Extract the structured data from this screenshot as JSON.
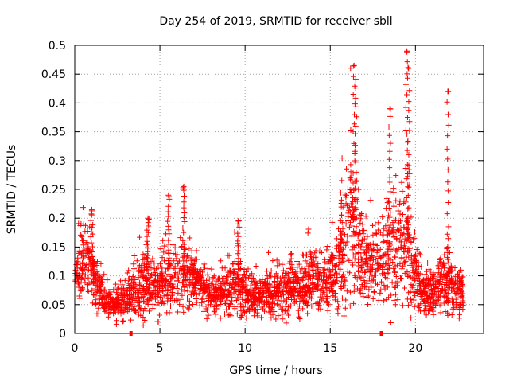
{
  "chart_data": {
    "type": "scatter",
    "title": "Day 254 of 2019, SRMTID for receiver sbll",
    "xlabel": "GPS time / hours",
    "ylabel": "SRMTID / TECUs",
    "xlim": [
      0,
      24
    ],
    "ylim": [
      0,
      0.5
    ],
    "x_ticks": [
      0,
      5,
      10,
      15,
      20
    ],
    "x_tick_labels": [
      "0",
      "5",
      "10",
      "15",
      "20"
    ],
    "y_ticks": [
      0,
      0.05,
      0.1,
      0.15,
      0.2,
      0.25,
      0.3,
      0.35,
      0.4,
      0.45,
      0.5
    ],
    "y_tick_labels": [
      "0",
      "0.05",
      "0.1",
      "0.15",
      "0.2",
      "0.25",
      "0.3",
      "0.35",
      "0.4",
      "0.45",
      "0.5"
    ],
    "grid": true,
    "marker": "plus",
    "color": "#ff0000",
    "gap_markers_x": [
      3.3,
      18.0
    ],
    "envelope": {
      "x": [
        0.0,
        0.3,
        0.6,
        0.9,
        1.2,
        1.5,
        1.8,
        2.1,
        2.4,
        2.7,
        3.0,
        3.3,
        3.6,
        3.9,
        4.2,
        4.5,
        4.8,
        5.1,
        5.4,
        5.7,
        6.0,
        6.3,
        6.6,
        6.9,
        7.2,
        7.5,
        7.8,
        8.1,
        8.4,
        8.7,
        9.0,
        9.3,
        9.6,
        9.9,
        10.2,
        10.5,
        10.8,
        11.1,
        11.4,
        11.7,
        12.0,
        12.3,
        12.6,
        12.9,
        13.2,
        13.5,
        13.8,
        14.1,
        14.4,
        14.7,
        15.0,
        15.3,
        15.6,
        15.9,
        16.2,
        16.5,
        16.8,
        17.1,
        17.4,
        17.7,
        18.0,
        18.3,
        18.6,
        18.9,
        19.2,
        19.5,
        19.8,
        20.1,
        20.4,
        20.7,
        21.0,
        21.3,
        21.6,
        21.9,
        22.2,
        22.5,
        22.8
      ],
      "mean": [
        0.1,
        0.12,
        0.13,
        0.12,
        0.09,
        0.07,
        0.06,
        0.05,
        0.05,
        0.055,
        0.06,
        0.07,
        0.075,
        0.08,
        0.09,
        0.085,
        0.08,
        0.09,
        0.095,
        0.09,
        0.095,
        0.1,
        0.1,
        0.09,
        0.085,
        0.08,
        0.075,
        0.07,
        0.065,
        0.07,
        0.08,
        0.09,
        0.085,
        0.07,
        0.065,
        0.065,
        0.06,
        0.065,
        0.07,
        0.075,
        0.07,
        0.075,
        0.08,
        0.085,
        0.08,
        0.085,
        0.09,
        0.095,
        0.09,
        0.09,
        0.1,
        0.11,
        0.13,
        0.16,
        0.2,
        0.17,
        0.14,
        0.13,
        0.12,
        0.13,
        0.12,
        0.13,
        0.15,
        0.14,
        0.15,
        0.16,
        0.12,
        0.09,
        0.07,
        0.065,
        0.065,
        0.075,
        0.085,
        0.09,
        0.08,
        0.07,
        0.075
      ],
      "spread": [
        0.03,
        0.04,
        0.05,
        0.05,
        0.04,
        0.03,
        0.025,
        0.02,
        0.02,
        0.025,
        0.03,
        0.035,
        0.04,
        0.045,
        0.05,
        0.045,
        0.04,
        0.045,
        0.05,
        0.05,
        0.055,
        0.06,
        0.05,
        0.04,
        0.035,
        0.03,
        0.03,
        0.03,
        0.025,
        0.03,
        0.04,
        0.045,
        0.04,
        0.035,
        0.03,
        0.03,
        0.03,
        0.03,
        0.035,
        0.035,
        0.035,
        0.035,
        0.04,
        0.04,
        0.04,
        0.045,
        0.045,
        0.045,
        0.04,
        0.04,
        0.045,
        0.05,
        0.07,
        0.1,
        0.12,
        0.08,
        0.06,
        0.055,
        0.05,
        0.06,
        0.05,
        0.07,
        0.09,
        0.07,
        0.08,
        0.12,
        0.08,
        0.04,
        0.03,
        0.03,
        0.03,
        0.035,
        0.04,
        0.05,
        0.04,
        0.035,
        0.03
      ],
      "count": 2600,
      "seed": 254
    },
    "peaks": [
      {
        "name": "peak-16.4h",
        "x": 16.4,
        "y": 0.465
      },
      {
        "name": "peak-16.5h",
        "x": 16.5,
        "y": 0.44
      },
      {
        "name": "peak-18.5h",
        "x": 18.5,
        "y": 0.39
      },
      {
        "name": "peak-19.5h",
        "x": 19.5,
        "y": 0.49
      },
      {
        "name": "peak-19.6h",
        "x": 19.6,
        "y": 0.46
      },
      {
        "name": "peak-21.9h",
        "x": 21.9,
        "y": 0.42
      },
      {
        "name": "peak-6.4h",
        "x": 6.4,
        "y": 0.255
      },
      {
        "name": "peak-5.5h",
        "x": 5.5,
        "y": 0.24
      },
      {
        "name": "peak-1.0h",
        "x": 1.0,
        "y": 0.215
      },
      {
        "name": "peak-4.3h",
        "x": 4.3,
        "y": 0.2
      },
      {
        "name": "peak-9.6h",
        "x": 9.6,
        "y": 0.195
      }
    ]
  }
}
